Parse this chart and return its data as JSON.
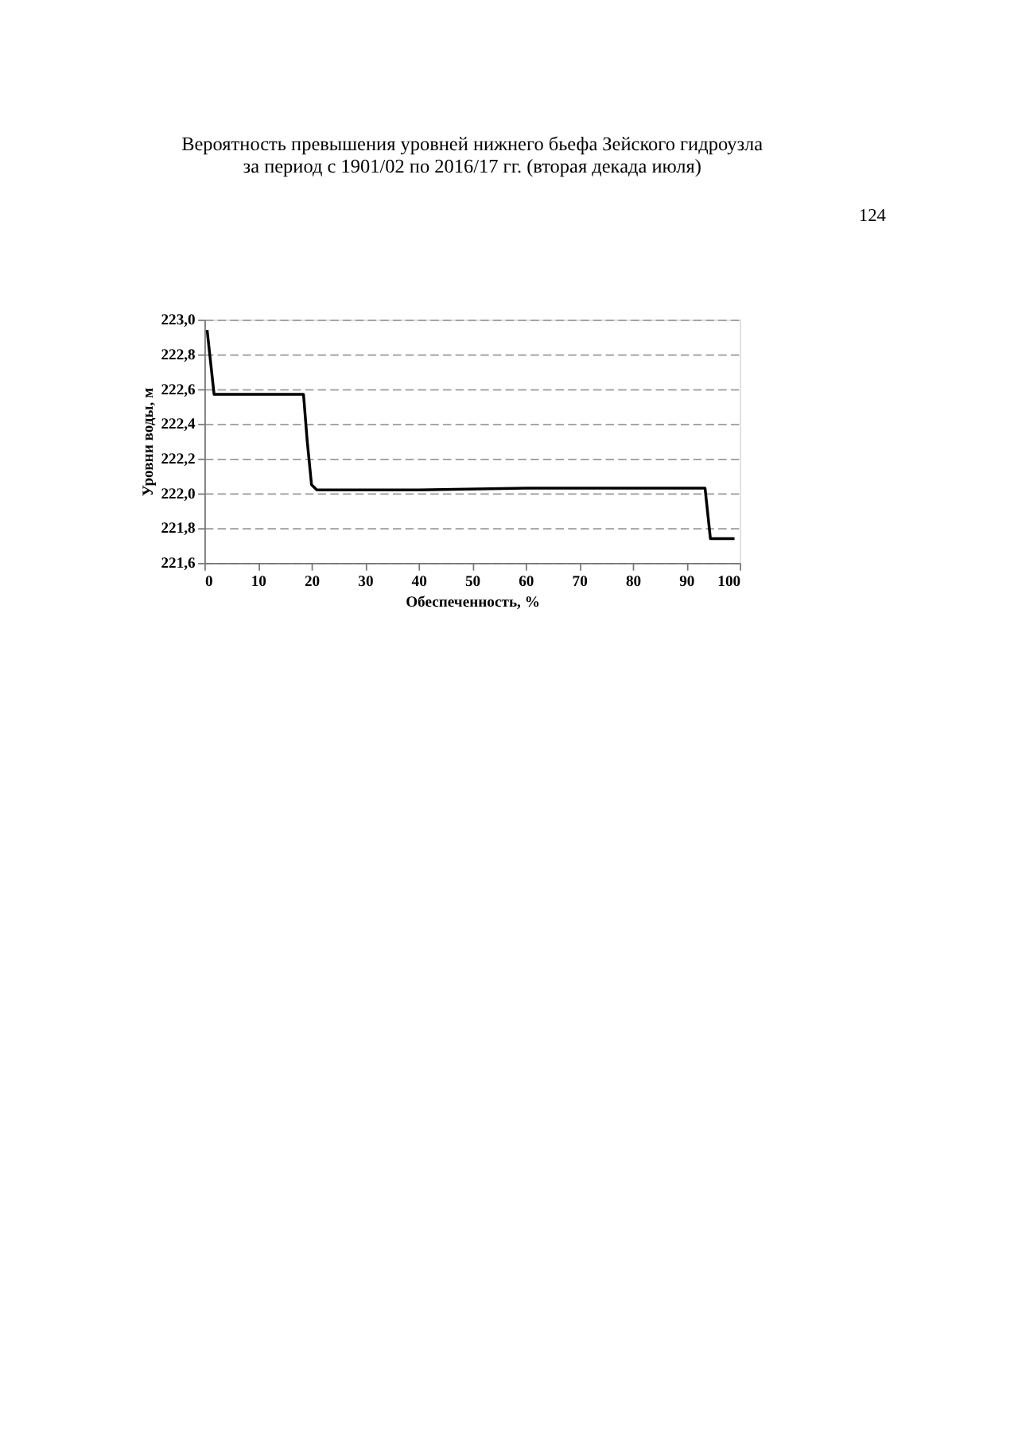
{
  "chart_data": {
    "type": "line",
    "title": [
      "Вероятность превышения уровней нижнего бьефа Зейского гидроузла",
      "за период с 1901/02 по 2016/17 гг. (вторая декада июля)"
    ],
    "xlabel": "Обеспеченность, %",
    "ylabel": "Уровни воды, м",
    "annotations": [
      "124"
    ],
    "series": [
      {
        "color": "#000000",
        "x": [
          0.5,
          1.8,
          10,
          18.5,
          19.2,
          20,
          21,
          40,
          60,
          80,
          93.5,
          94.5,
          99
        ],
        "values": [
          222.94,
          222.57,
          222.57,
          222.57,
          222.3,
          222.05,
          222.02,
          222.02,
          222.03,
          222.03,
          222.03,
          221.74,
          221.74
        ]
      }
    ],
    "xlim": [
      0,
      100
    ],
    "xticks": [
      0,
      10,
      20,
      30,
      40,
      50,
      60,
      70,
      80,
      90,
      100
    ],
    "ylim": [
      221.6,
      223.0
    ],
    "yticks": [
      {
        "value": 221.6,
        "label": "221,6"
      },
      {
        "value": 221.8,
        "label": "221,8"
      },
      {
        "value": 222.0,
        "label": "222,0"
      },
      {
        "value": 222.2,
        "label": "222,2"
      },
      {
        "value": 222.4,
        "label": "222,4"
      },
      {
        "value": 222.6,
        "label": "222,6"
      },
      {
        "value": 222.8,
        "label": "222,8"
      },
      {
        "value": 223.0,
        "label": "223,0"
      }
    ],
    "grid": "y",
    "legend": false,
    "marker": "none",
    "line_style": "solid"
  }
}
